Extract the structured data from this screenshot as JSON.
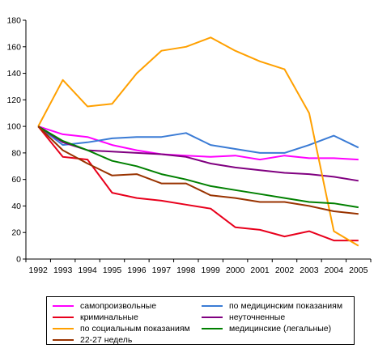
{
  "chart_data": {
    "type": "line",
    "title": "",
    "xlabel": "",
    "ylabel": "",
    "x": [
      "1992",
      "1993",
      "1994",
      "1995",
      "1996",
      "1997",
      "1998",
      "1999",
      "2000",
      "2001",
      "2002",
      "2003",
      "2004",
      "2005"
    ],
    "ylim": [
      0,
      180
    ],
    "yticks": [
      0,
      20,
      40,
      60,
      80,
      100,
      120,
      140,
      160,
      180
    ],
    "grid": false,
    "legend_position": "bottom",
    "series": [
      {
        "name": "самопроизвольные",
        "color": "#ff00ff",
        "values": [
          100,
          94,
          92,
          86,
          82,
          79,
          78,
          77,
          78,
          75,
          78,
          76,
          76,
          75
        ]
      },
      {
        "name": "по медицинским показаниям",
        "color": "#3a7bd5",
        "values": [
          100,
          86,
          88,
          91,
          92,
          92,
          95,
          86,
          83,
          80,
          80,
          86,
          93,
          84
        ]
      },
      {
        "name": "криминальные",
        "color": "#e8001c",
        "values": [
          100,
          77,
          75,
          50,
          46,
          44,
          41,
          38,
          24,
          22,
          17,
          21,
          14,
          14
        ]
      },
      {
        "name": "неуточненные",
        "color": "#800080",
        "values": [
          100,
          88,
          82,
          81,
          80,
          79,
          77,
          72,
          69,
          67,
          65,
          64,
          62,
          59
        ]
      },
      {
        "name": "по социальным показаниям",
        "color": "#ffa000",
        "values": [
          100,
          135,
          115,
          117,
          140,
          157,
          160,
          167,
          157,
          149,
          143,
          110,
          21,
          10
        ]
      },
      {
        "name": "медицинские (легальные)",
        "color": "#008000",
        "values": [
          100,
          89,
          82,
          74,
          70,
          64,
          60,
          55,
          52,
          49,
          46,
          43,
          42,
          39
        ]
      },
      {
        "name": "22-27 недель",
        "color": "#993300",
        "values": [
          100,
          82,
          72,
          63,
          64,
          57,
          57,
          48,
          46,
          43,
          43,
          40,
          36,
          34
        ]
      }
    ]
  }
}
